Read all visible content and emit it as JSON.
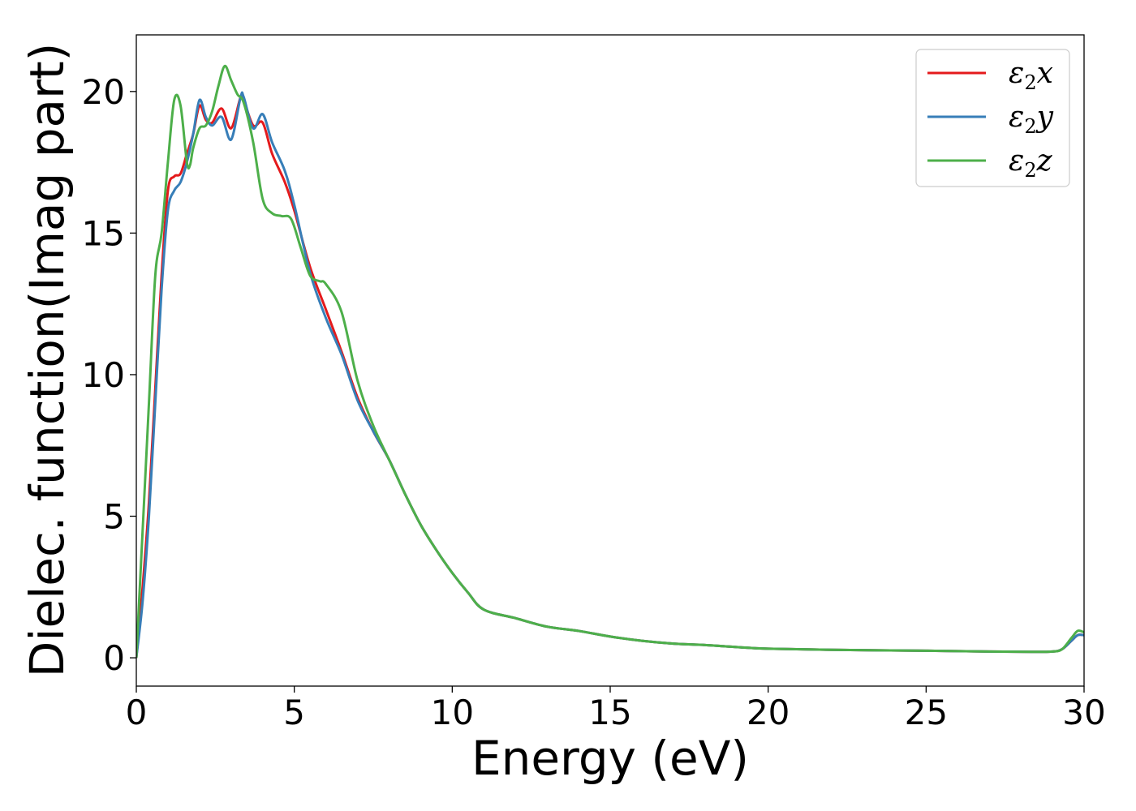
{
  "chart_data": {
    "type": "line",
    "title": "",
    "xlabel": "Energy (eV)",
    "ylabel": "Dielec. function(Imag part)",
    "xlim": [
      0,
      30
    ],
    "ylim": [
      -1,
      22
    ],
    "xticks": [
      "0",
      "5",
      "10",
      "15",
      "20",
      "25",
      "30"
    ],
    "yticks": [
      "0",
      "5",
      "10",
      "15",
      "20"
    ],
    "grid": false,
    "legend_position": "top-right",
    "series": [
      {
        "name": "ε2x",
        "legend": {
          "base": "ε",
          "sub": "2",
          "suffix": "x"
        },
        "color": "#e41a1c",
        "x": [
          0,
          0.2,
          0.4,
          0.6,
          0.8,
          1.0,
          1.2,
          1.4,
          1.6,
          1.8,
          2.0,
          2.2,
          2.4,
          2.7,
          3.0,
          3.3,
          3.4,
          3.7,
          4.0,
          4.3,
          4.7,
          5.0,
          5.5,
          6.0,
          6.5,
          7.0,
          7.5,
          8.0,
          8.5,
          9.0,
          9.5,
          10.0,
          10.5,
          11.0,
          12.0,
          13.0,
          14.0,
          15.0,
          16.0,
          17.0,
          18.0,
          19.0,
          20.0,
          22.0,
          25.0,
          27.0,
          28.5,
          29.0,
          29.3,
          29.6,
          29.8,
          30.0
        ],
        "y": [
          0,
          2.5,
          5.5,
          9.5,
          13.5,
          16.5,
          17.0,
          17.1,
          17.8,
          18.5,
          19.5,
          19.0,
          18.9,
          19.4,
          18.7,
          19.8,
          19.7,
          18.8,
          18.9,
          17.8,
          16.8,
          15.8,
          13.8,
          12.3,
          10.8,
          9.2,
          8.0,
          7.0,
          5.8,
          4.7,
          3.8,
          3.0,
          2.3,
          1.7,
          1.4,
          1.1,
          0.95,
          0.75,
          0.6,
          0.5,
          0.45,
          0.38,
          0.32,
          0.28,
          0.25,
          0.22,
          0.21,
          0.22,
          0.3,
          0.6,
          0.8,
          0.8
        ]
      },
      {
        "name": "ε2y",
        "legend": {
          "base": "ε",
          "sub": "2",
          "suffix": "y"
        },
        "color": "#377eb8",
        "x": [
          0,
          0.2,
          0.4,
          0.6,
          0.8,
          1.0,
          1.2,
          1.4,
          1.6,
          1.8,
          2.0,
          2.2,
          2.4,
          2.7,
          3.0,
          3.3,
          3.4,
          3.7,
          4.0,
          4.3,
          4.7,
          5.0,
          5.5,
          6.0,
          6.5,
          7.0,
          7.5,
          8.0,
          8.5,
          9.0,
          9.5,
          10.0,
          10.5,
          11.0,
          12.0,
          13.0,
          14.0,
          15.0,
          16.0,
          17.0,
          18.0,
          19.0,
          20.0,
          22.0,
          25.0,
          27.0,
          28.5,
          29.0,
          29.3,
          29.6,
          29.8,
          30.0
        ],
        "y": [
          0,
          2.0,
          5.0,
          9.0,
          13.0,
          15.8,
          16.5,
          16.8,
          17.5,
          18.5,
          19.7,
          19.1,
          18.8,
          19.1,
          18.3,
          19.8,
          19.8,
          18.7,
          19.2,
          18.2,
          17.2,
          16.0,
          13.6,
          12.0,
          10.7,
          9.1,
          8.0,
          7.0,
          5.8,
          4.7,
          3.8,
          3.0,
          2.3,
          1.7,
          1.4,
          1.1,
          0.95,
          0.75,
          0.6,
          0.5,
          0.45,
          0.38,
          0.32,
          0.28,
          0.25,
          0.22,
          0.21,
          0.22,
          0.3,
          0.6,
          0.8,
          0.8
        ]
      },
      {
        "name": "ε2z",
        "legend": {
          "base": "ε",
          "sub": "2",
          "suffix": "z"
        },
        "color": "#4daf4a",
        "x": [
          0,
          0.2,
          0.4,
          0.6,
          0.8,
          1.0,
          1.2,
          1.4,
          1.6,
          1.7,
          1.8,
          2.0,
          2.2,
          2.4,
          2.6,
          2.8,
          3.0,
          3.2,
          3.4,
          3.7,
          4.0,
          4.3,
          4.6,
          4.9,
          5.2,
          5.5,
          5.8,
          6.0,
          6.5,
          7.0,
          7.5,
          8.0,
          8.5,
          9.0,
          9.5,
          10.0,
          10.5,
          11.0,
          12.0,
          13.0,
          14.0,
          15.0,
          16.0,
          17.0,
          18.0,
          19.0,
          20.0,
          22.0,
          25.0,
          27.0,
          28.5,
          29.0,
          29.3,
          29.6,
          29.8,
          30.0
        ],
        "y": [
          0,
          4.5,
          9.0,
          13.5,
          15.0,
          17.5,
          19.7,
          19.5,
          17.5,
          17.4,
          18.0,
          18.7,
          18.8,
          19.3,
          20.2,
          20.9,
          20.4,
          19.9,
          19.6,
          18.2,
          16.2,
          15.7,
          15.6,
          15.5,
          14.5,
          13.5,
          13.3,
          13.2,
          12.2,
          9.8,
          8.2,
          7.0,
          5.8,
          4.7,
          3.8,
          3.0,
          2.3,
          1.7,
          1.4,
          1.1,
          0.95,
          0.75,
          0.6,
          0.5,
          0.45,
          0.38,
          0.32,
          0.28,
          0.25,
          0.22,
          0.21,
          0.22,
          0.3,
          0.7,
          0.95,
          0.9
        ]
      }
    ]
  }
}
